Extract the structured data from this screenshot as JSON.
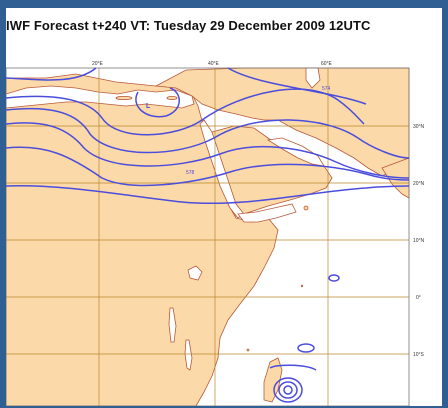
{
  "title": "IWF Forecast t+240 VT: Tuesday 29 December 2009 12UTC",
  "longitude_labels": [
    "20°E",
    "40°E",
    "60°E"
  ],
  "latitude_labels": [
    "30°N",
    "20°N",
    "10°N",
    "0°",
    "10°S"
  ],
  "pressure_center_label": "L",
  "contour_labels": [
    "574",
    "578"
  ],
  "colors": {
    "land": "#fcd9a8",
    "sea": "#ffffff",
    "coastline": "#b85a3a",
    "contour": "#4b4ddc",
    "grid": "#b8872f",
    "frame": "#2f5f93"
  }
}
